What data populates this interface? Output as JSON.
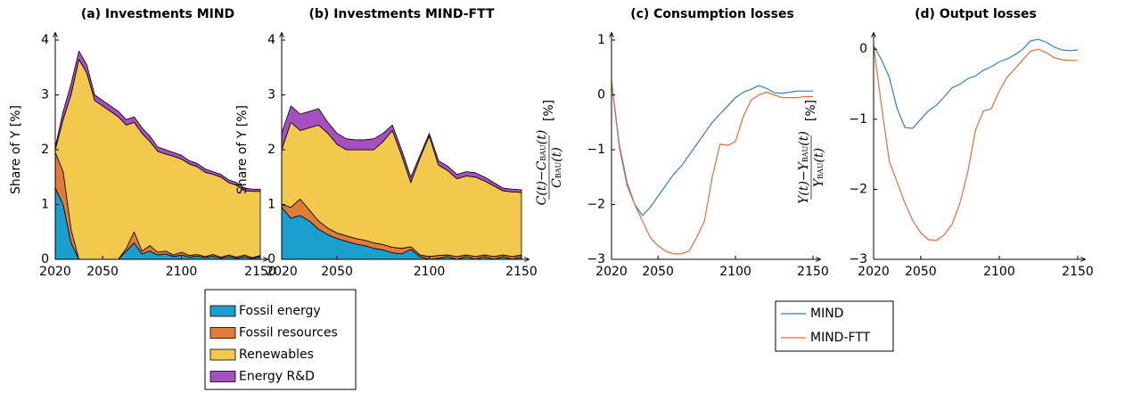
{
  "chart_data": [
    {
      "type": "area",
      "title": "(a) Investments MIND",
      "ylabel": "Share of Y [%]",
      "x": [
        2020,
        2025,
        2030,
        2035,
        2040,
        2045,
        2050,
        2055,
        2060,
        2065,
        2070,
        2075,
        2080,
        2085,
        2090,
        2095,
        2100,
        2105,
        2110,
        2115,
        2120,
        2125,
        2130,
        2135,
        2140,
        2145,
        2150
      ],
      "xlim": [
        2020,
        2150
      ],
      "xticks": [
        2020,
        2050,
        2100,
        2150
      ],
      "ylim": [
        0,
        4
      ],
      "yticks": [
        0,
        1,
        2,
        3,
        4
      ],
      "series": [
        {
          "name": "Fossil energy",
          "color": "#1a9fce",
          "values": [
            1.3,
            1.0,
            0.3,
            0,
            0,
            0,
            0,
            0,
            0,
            0.15,
            0.3,
            0.1,
            0.15,
            0.08,
            0.1,
            0.05,
            0.08,
            0.04,
            0.06,
            0.03,
            0.06,
            0.02,
            0.05,
            0.02,
            0.05,
            0.01,
            0.05
          ]
        },
        {
          "name": "Fossil resources",
          "color": "#e07b39",
          "values": [
            0.65,
            0.6,
            0.25,
            0,
            0,
            0,
            0,
            0,
            0,
            0.05,
            0.2,
            0.05,
            0.1,
            0.05,
            0.05,
            0.03,
            0.05,
            0.03,
            0.03,
            0.02,
            0.03,
            0.02,
            0.03,
            0.02,
            0.03,
            0.02,
            0.02
          ]
        },
        {
          "name": "Renewables",
          "color": "#f2c94c",
          "values": [
            0.05,
            0.95,
            2.45,
            3.65,
            3.4,
            2.9,
            2.8,
            2.7,
            2.6,
            2.25,
            2.0,
            2.15,
            1.9,
            1.84,
            1.77,
            1.8,
            1.7,
            1.67,
            1.6,
            1.54,
            1.46,
            1.46,
            1.32,
            1.31,
            1.17,
            1.21,
            1.17
          ]
        },
        {
          "name": "Energy R&D",
          "color": "#a64fbf",
          "values": [
            0.05,
            0.15,
            0.2,
            0.15,
            0.15,
            0.1,
            0.1,
            0.1,
            0.1,
            0.1,
            0.1,
            0.1,
            0.1,
            0.08,
            0.08,
            0.07,
            0.07,
            0.06,
            0.06,
            0.06,
            0.05,
            0.05,
            0.05,
            0.05,
            0.05,
            0.04,
            0.04
          ]
        }
      ]
    },
    {
      "type": "area",
      "title": "(b) Investments MIND-FTT",
      "ylabel": "Share of Y [%]",
      "x": [
        2020,
        2025,
        2030,
        2035,
        2040,
        2045,
        2050,
        2055,
        2060,
        2065,
        2070,
        2075,
        2080,
        2085,
        2090,
        2095,
        2100,
        2105,
        2110,
        2115,
        2120,
        2125,
        2130,
        2135,
        2140,
        2145,
        2150
      ],
      "xlim": [
        2020,
        2150
      ],
      "xticks": [
        2020,
        2050,
        2100,
        2150
      ],
      "ylim": [
        0,
        4
      ],
      "yticks": [
        0,
        1,
        2,
        3,
        4
      ],
      "series": [
        {
          "color": "#1a9fce",
          "values": [
            0.95,
            0.75,
            0.8,
            0.7,
            0.55,
            0.45,
            0.38,
            0.33,
            0.28,
            0.25,
            0.2,
            0.17,
            0.12,
            0.1,
            0.18,
            0.05,
            0,
            0.02,
            0.05,
            0,
            0.05,
            0,
            0.05,
            0,
            0.05,
            0,
            0.05
          ]
        },
        {
          "color": "#e07b39",
          "values": [
            0.05,
            0.2,
            0.3,
            0.2,
            0.15,
            0.12,
            0.1,
            0.1,
            0.1,
            0.1,
            0.1,
            0.1,
            0.1,
            0.1,
            0.05,
            0.03,
            0.05,
            0.05,
            0.03,
            0.05,
            0.03,
            0.05,
            0.03,
            0.05,
            0.03,
            0.05,
            0.03
          ]
        },
        {
          "color": "#f2c94c",
          "values": [
            1.0,
            1.55,
            1.25,
            1.5,
            1.75,
            1.73,
            1.62,
            1.57,
            1.62,
            1.65,
            1.7,
            1.88,
            2.13,
            1.7,
            1.17,
            1.77,
            2.2,
            1.65,
            1.54,
            1.42,
            1.44,
            1.45,
            1.35,
            1.29,
            1.17,
            1.18,
            1.14
          ]
        },
        {
          "color": "#a64fbf",
          "values": [
            0.3,
            0.3,
            0.3,
            0.3,
            0.3,
            0.2,
            0.2,
            0.2,
            0.18,
            0.18,
            0.2,
            0.15,
            0.1,
            0.1,
            0.1,
            0.05,
            0.05,
            0.08,
            0.08,
            0.08,
            0.08,
            0.08,
            0.07,
            0.06,
            0.05,
            0.05,
            0.05
          ]
        }
      ]
    },
    {
      "type": "line",
      "title": "(c) Consumption losses",
      "ylabel": {
        "numerator": [
          "C(t)−C",
          "BAU",
          "(t)"
        ],
        "denominator": [
          "C",
          "BAU",
          "(t)"
        ],
        "unit": "[%]"
      },
      "x": [
        2020,
        2025,
        2030,
        2035,
        2040,
        2045,
        2050,
        2055,
        2060,
        2065,
        2070,
        2075,
        2080,
        2085,
        2090,
        2095,
        2100,
        2105,
        2110,
        2115,
        2120,
        2125,
        2130,
        2135,
        2140,
        2145,
        2150
      ],
      "xlim": [
        2020,
        2150
      ],
      "xticks": [
        2020,
        2050,
        2100,
        2150
      ],
      "ylim": [
        -3,
        1
      ],
      "yticks": [
        {
          "value": -3,
          "label": "−3"
        },
        {
          "value": -2,
          "label": "−2"
        },
        {
          "value": -1,
          "label": "−1"
        },
        0,
        1
      ],
      "series": [
        {
          "name": "MIND",
          "color": "#2f7fc1",
          "values": [
            0.25,
            -0.9,
            -1.6,
            -2.0,
            -2.2,
            -2.05,
            -1.85,
            -1.65,
            -1.45,
            -1.3,
            -1.1,
            -0.9,
            -0.7,
            -0.5,
            -0.35,
            -0.2,
            -0.05,
            0.05,
            0.1,
            0.17,
            0.12,
            0.04,
            0.03,
            0.05,
            0.07,
            0.07,
            0.07
          ]
        },
        {
          "name": "MIND-FTT",
          "color": "#e06c3c",
          "values": [
            0.25,
            -0.95,
            -1.65,
            -2.0,
            -2.3,
            -2.6,
            -2.75,
            -2.85,
            -2.9,
            -2.9,
            -2.85,
            -2.6,
            -2.3,
            -1.5,
            -0.9,
            -0.92,
            -0.85,
            -0.4,
            -0.1,
            0.0,
            0.05,
            0.0,
            -0.05,
            -0.05,
            -0.05,
            -0.03,
            -0.03
          ]
        }
      ]
    },
    {
      "type": "line",
      "title": "(d) Output losses",
      "ylabel": {
        "numerator": [
          "Y(t)−Y",
          "BAU",
          "(t)"
        ],
        "denominator": [
          "Y",
          "BAU",
          "(t)"
        ],
        "unit": "[%]"
      },
      "x": [
        2020,
        2025,
        2030,
        2035,
        2040,
        2045,
        2050,
        2055,
        2060,
        2065,
        2070,
        2075,
        2080,
        2085,
        2090,
        2095,
        2100,
        2105,
        2110,
        2115,
        2120,
        2125,
        2130,
        2135,
        2140,
        2145,
        2150
      ],
      "xlim": [
        2020,
        2150
      ],
      "xticks": [
        2020,
        2050,
        2100,
        2150
      ],
      "ylim": [
        -3,
        0.13
      ],
      "yticks": [
        {
          "value": -3,
          "label": "−3"
        },
        {
          "value": -2,
          "label": "−2"
        },
        {
          "value": -1,
          "label": "−1"
        },
        0
      ],
      "series": [
        {
          "color": "#2f7fc1",
          "values": [
            0.05,
            -0.15,
            -0.4,
            -0.85,
            -1.12,
            -1.13,
            -1.0,
            -0.88,
            -0.8,
            -0.68,
            -0.55,
            -0.5,
            -0.42,
            -0.38,
            -0.3,
            -0.25,
            -0.18,
            -0.14,
            -0.08,
            0.0,
            0.12,
            0.14,
            0.1,
            0.03,
            -0.01,
            -0.02,
            -0.01
          ]
        },
        {
          "color": "#e06c3c",
          "values": [
            0.05,
            -0.8,
            -1.6,
            -1.9,
            -2.2,
            -2.45,
            -2.62,
            -2.72,
            -2.73,
            -2.65,
            -2.5,
            -2.2,
            -1.75,
            -1.15,
            -0.88,
            -0.85,
            -0.6,
            -0.4,
            -0.28,
            -0.15,
            -0.03,
            0.0,
            -0.05,
            -0.12,
            -0.15,
            -0.16,
            -0.16
          ]
        }
      ]
    }
  ]
}
